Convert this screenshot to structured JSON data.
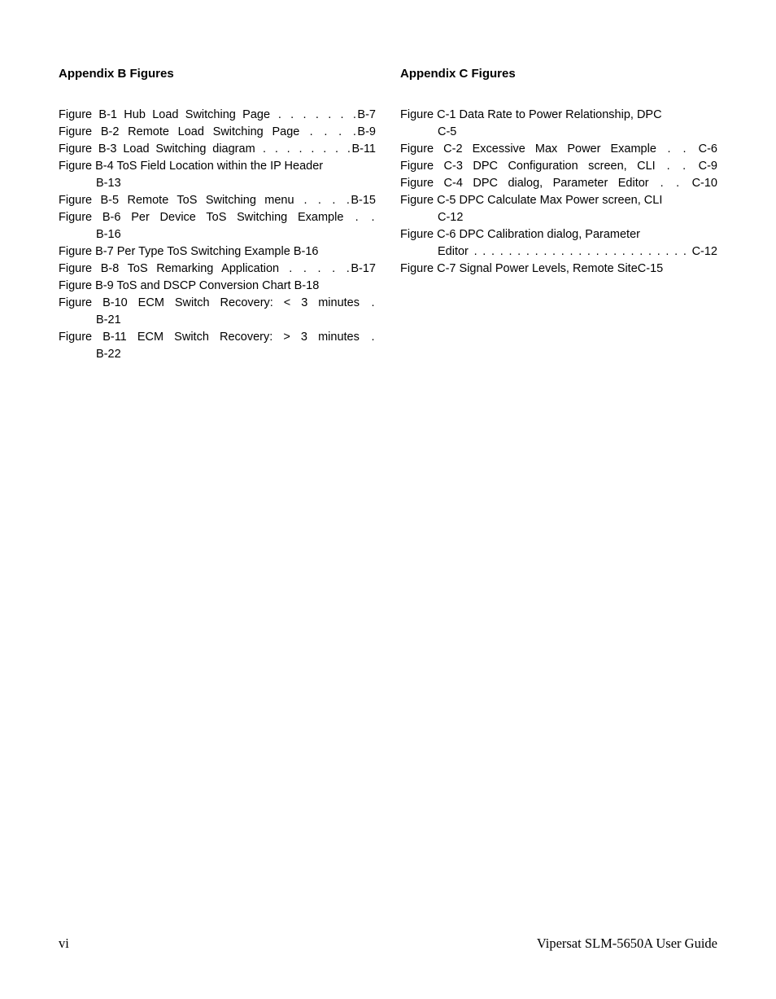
{
  "left": {
    "title": "Appendix B Figures",
    "entries": [
      {
        "prefix": "Figure B-1",
        "text": "Hub Load Switching Page",
        "dots": " . . . . . . .",
        "page": "B-7",
        "justify": true
      },
      {
        "prefix": "Figure B-2",
        "text": "Remote Load Switching Page",
        "dots": " . . . .",
        "page": "B-9",
        "justify": true
      },
      {
        "prefix": "Figure B-3",
        "text": "Load Switching diagram",
        "dots": " . . . . . . . .",
        "page": "B-11",
        "justify": true
      },
      {
        "prefix": "Figure B-4",
        "text": "ToS Field Location within the IP Header",
        "dots": "",
        "page": "",
        "cont": "B-13",
        "justify": false
      },
      {
        "prefix": "Figure B-5",
        "text": "Remote ToS Switching menu",
        "dots": " . . . .",
        "page": "B-15",
        "justify": true
      },
      {
        "prefix": "Figure B-6",
        "text": "Per Device ToS Switching Example",
        "dots": " . .",
        "page": "",
        "cont": "B-16",
        "justify": true
      },
      {
        "prefix": "Figure B-7",
        "text": "Per Type ToS Switching Example ",
        "dots": "",
        "page": "B-16",
        "justify": false
      },
      {
        "prefix": "Figure B-8",
        "text": "ToS Remarking Application",
        "dots": " . . . . .",
        "page": "B-17",
        "justify": true
      },
      {
        "prefix": "Figure B-9",
        "text": "ToS and DSCP Conversion Chart ",
        "dots": "",
        "page": "B-18",
        "justify": false
      },
      {
        "prefix": "Figure B-10",
        "text": "ECM Switch Recovery: < 3 minutes",
        "dots": " .",
        "page": "",
        "cont": "B-21",
        "justify": true
      },
      {
        "prefix": "Figure B-11",
        "text": "ECM Switch Recovery: > 3 minutes",
        "dots": " .",
        "page": "",
        "cont": "B-22",
        "justify": true
      }
    ]
  },
  "right": {
    "title": "Appendix C Figures",
    "entries": [
      {
        "prefix": "Figure C-1",
        "text": "Data Rate to Power Relationship, DPC",
        "dots": "",
        "page": "",
        "cont": "C-5",
        "justify": false
      },
      {
        "prefix": "Figure C-2",
        "text": "Excessive Max Power Example",
        "dots": " . . ",
        "page": "C-6",
        "justify": true
      },
      {
        "prefix": "Figure C-3",
        "text": "DPC Configuration screen, CLI",
        "dots": " . . ",
        "page": "C-9",
        "justify": true
      },
      {
        "prefix": "Figure C-4",
        "text": "DPC dialog, Parameter Editor",
        "dots": "  . . ",
        "page": "C-10",
        "justify": true
      },
      {
        "prefix": "Figure C-5",
        "text": "DPC Calculate Max Power screen, CLI",
        "dots": "",
        "page": "",
        "cont": "C-12",
        "justify": false
      },
      {
        "prefix": "Figure C-6",
        "text": "DPC Calibration dialog, Parameter",
        "dots": "",
        "page": "",
        "cont_full": "Editor . . . . . . . . . . . . . . . . . . . . . . . . .  C-12",
        "justify": false
      },
      {
        "prefix": "Figure C-7",
        "text": "Signal Power Levels, Remote Site",
        "dots": "",
        "page": "C-15",
        "justify": false
      }
    ]
  },
  "footer": {
    "left": "vi",
    "right": "Vipersat SLM-5650A User Guide"
  }
}
